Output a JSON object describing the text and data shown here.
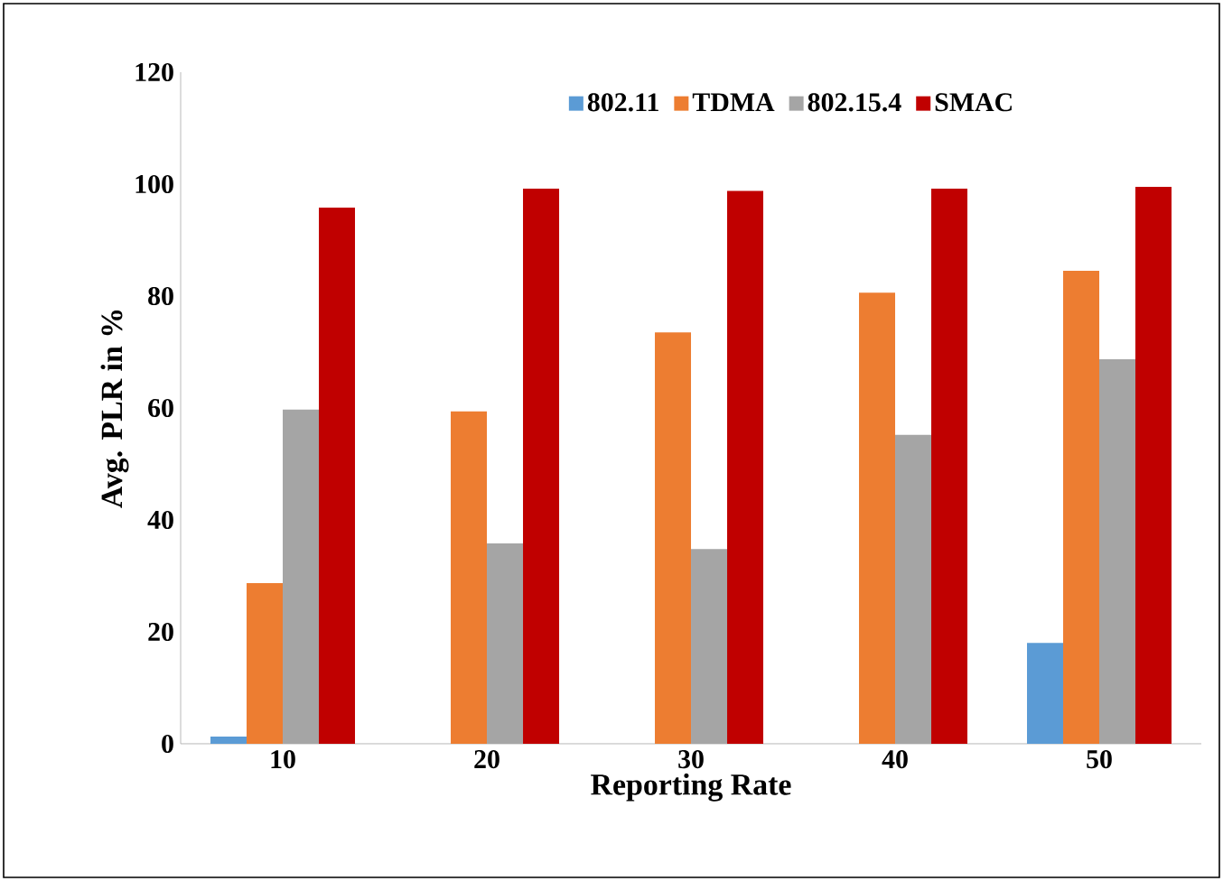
{
  "chart_data": {
    "type": "bar",
    "xlabel": "Reporting Rate",
    "ylabel": "Avg. PLR in %",
    "categories": [
      "10",
      "20",
      "30",
      "40",
      "50"
    ],
    "series": [
      {
        "name": "802.11",
        "color": "#5b9bd5",
        "values": [
          1.3,
          null,
          null,
          null,
          18
        ]
      },
      {
        "name": "TDMA",
        "color": "#ed7d31",
        "values": [
          28.7,
          59.4,
          73.5,
          80.6,
          84.5
        ]
      },
      {
        "name": "802.15.4",
        "color": "#a5a5a5",
        "values": [
          59.7,
          35.8,
          34.8,
          55.2,
          68.7
        ]
      },
      {
        "name": "SMAC",
        "color": "#c00000",
        "values": [
          95.8,
          99.2,
          98.8,
          99.2,
          99.5
        ]
      }
    ],
    "ylim": [
      0,
      120
    ],
    "yticks": [
      0,
      20,
      40,
      60,
      80,
      100,
      120
    ],
    "grid": false,
    "legend": "top"
  }
}
